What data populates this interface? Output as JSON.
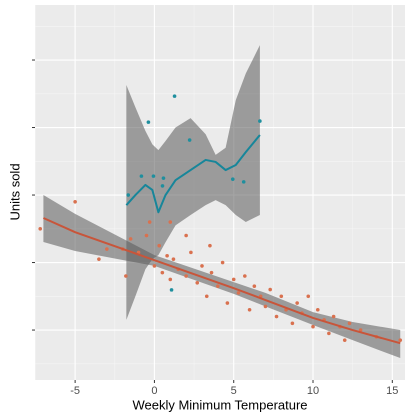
{
  "chart_data": {
    "type": "scatter",
    "x_label": "Weekly Minimum Temperature",
    "y_label": "Units sold",
    "xlim": [
      -7.53,
      15.8
    ],
    "ylim": [
      5.2,
      116.3
    ],
    "xticks": [
      -5,
      0,
      5,
      10,
      15
    ],
    "yticks": [
      20,
      40,
      60,
      80,
      100
    ],
    "grid": true,
    "series": [
      {
        "color": "#1f8f9e",
        "x": [
          -0.38,
          1.27,
          2.22,
          -0.82,
          -0.06,
          0.51,
          0.57,
          -1.65,
          4.94,
          5.63,
          6.65,
          1.08
        ],
        "values": [
          81.6,
          89.3,
          76.3,
          65.6,
          65.6,
          62.7,
          65.0,
          60.0,
          64.7,
          63.9,
          81.9,
          31.9
        ]
      },
      {
        "color": "#d9714f",
        "x": [
          -7.2,
          -5,
          -3.5,
          -3,
          -2,
          -1.8,
          -1.5,
          -1,
          -0.5,
          0,
          0.3,
          0.5,
          0.8,
          1,
          1.2,
          1.5,
          2,
          2.3,
          2.7,
          3,
          3.3,
          3.6,
          4,
          4.3,
          4.6,
          5,
          5.3,
          5.7,
          6,
          6.3,
          6.7,
          7,
          7.3,
          7.7,
          8,
          8.3,
          8.7,
          9,
          9.3,
          9.7,
          10,
          10.3,
          10.7,
          11,
          11.3,
          11.7,
          12,
          12.3,
          13,
          14,
          15.5,
          1,
          2,
          -0.3,
          3.5
        ],
        "values": [
          50,
          58,
          41,
          44,
          44,
          36,
          47,
          43,
          48,
          39,
          45,
          37,
          42,
          35,
          41,
          38,
          36,
          43,
          34,
          39,
          30,
          37,
          33,
          40,
          28,
          35,
          31,
          36,
          26,
          33,
          30,
          27,
          32,
          24,
          30,
          26,
          22,
          28,
          25,
          30,
          21,
          26,
          23,
          19,
          24,
          21,
          17,
          22,
          20,
          18,
          17,
          52,
          48,
          52,
          45
        ]
      }
    ],
    "lines": [
      {
        "color": "#17869a",
        "x": [
          -1.77,
          -1.2,
          -0.57,
          -0.13,
          0.25,
          0.7,
          1.33,
          2.28,
          3.23,
          3.86,
          4.49,
          5.13,
          5.76,
          6.65
        ],
        "values": [
          57.0,
          60.0,
          63.0,
          61.5,
          54.9,
          60.0,
          64.4,
          67.4,
          70.4,
          69.8,
          67.4,
          68.9,
          72.7,
          77.8
        ],
        "upper": [
          92.6,
          86,
          79,
          75,
          73.3,
          76,
          80,
          82.8,
          78,
          71.9,
          74,
          88.1,
          96,
          104.4
        ],
        "lower": [
          23.0,
          30,
          38,
          41,
          42.2,
          46,
          51,
          54.1,
          57,
          58.5,
          57,
          54.1,
          52,
          54.1
        ]
      },
      {
        "color": "#c8553a",
        "x": [
          -7,
          -5,
          0,
          5,
          7,
          10,
          12.5,
          15.5
        ],
        "values": [
          53.2,
          49.0,
          40.7,
          32.4,
          28.9,
          23.6,
          20.0,
          16.1
        ],
        "upper": [
          60.0,
          54.4,
          42.2,
          34.2,
          31.0,
          25.3,
          22.4,
          20.0
        ],
        "lower": [
          46.1,
          43.4,
          39.0,
          30.7,
          27.0,
          21.5,
          17.0,
          11.7
        ]
      }
    ]
  }
}
